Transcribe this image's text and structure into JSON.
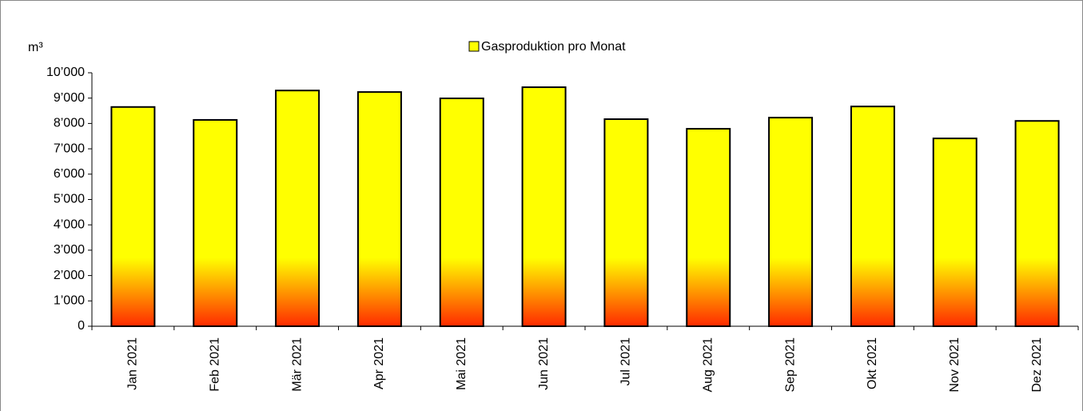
{
  "chart_data": {
    "type": "bar",
    "y_label": "m³",
    "categories": [
      "Jan 2021",
      "Feb 2021",
      "Mär 2021",
      "Apr 2021",
      "Mai 2021",
      "Jun 2021",
      "Jul 2021",
      "Aug 2021",
      "Sep 2021",
      "Okt 2021",
      "Nov 2021",
      "Dez 2021"
    ],
    "series": [
      {
        "name": "Gasproduktion pro Monat",
        "color": "#ffff00",
        "values": [
          8650,
          8140,
          9300,
          9240,
          8990,
          9430,
          8170,
          7790,
          8230,
          8670,
          7410,
          8100
        ]
      }
    ],
    "ylim": [
      0,
      10000
    ],
    "yticks": [
      0,
      {
        "value": 1000,
        "label": "1’000"
      },
      {
        "value": 2000,
        "label": "2’000"
      },
      {
        "value": 3000,
        "label": "3’000"
      },
      {
        "value": 4000,
        "label": "4’000"
      },
      {
        "value": 5000,
        "label": "5’000"
      },
      {
        "value": 6000,
        "label": "6’000"
      },
      {
        "value": 7000,
        "label": "7’000"
      },
      {
        "value": 8000,
        "label": "8’000"
      },
      {
        "value": 9000,
        "label": "9’000"
      },
      {
        "value": 10000,
        "label": "10’000"
      }
    ],
    "grid": false
  }
}
